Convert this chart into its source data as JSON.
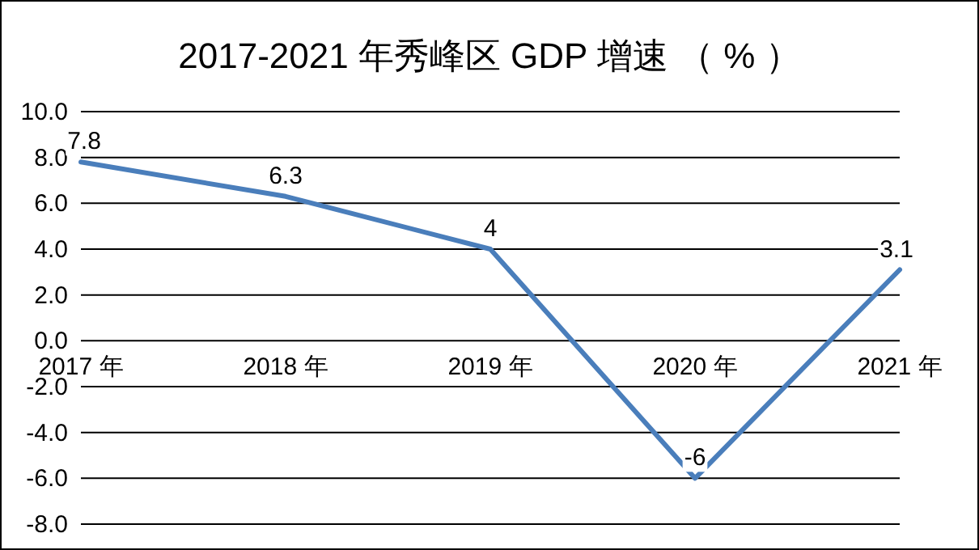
{
  "chart_data": {
    "type": "line",
    "title": "2017-2021 年秀峰区 GDP 增速 （ % ）",
    "categories": [
      "2017 年",
      "2018 年",
      "2019 年",
      "2020 年",
      "2021 年"
    ],
    "series": [
      {
        "color": "#4a7ebb",
        "values": [
          7.8,
          6.3,
          4,
          -6,
          3.1
        ]
      }
    ],
    "ylim": [
      -8,
      10
    ],
    "yticks": [
      {
        "value": -8,
        "label": "-8.0"
      },
      {
        "value": -6,
        "label": "-6.0"
      },
      {
        "value": -4,
        "label": "-4.0"
      },
      {
        "value": -2,
        "label": "-2.0"
      },
      {
        "value": 0,
        "label": "0.0"
      },
      {
        "value": 2,
        "label": "2.0"
      },
      {
        "value": 4,
        "label": "4.0"
      },
      {
        "value": 6,
        "label": "6.0"
      },
      {
        "value": 8,
        "label": "8.0"
      },
      {
        "value": 10,
        "label": "10.0"
      }
    ],
    "grid": "y",
    "data_labels": true,
    "marker": "none",
    "line_style": "solid"
  }
}
